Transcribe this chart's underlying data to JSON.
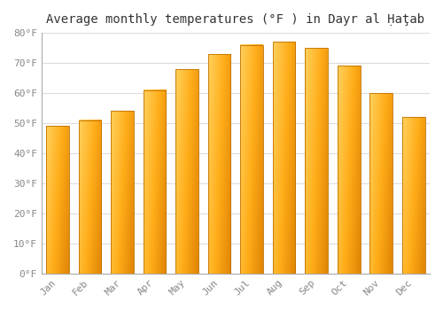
{
  "title": "Average monthly temperatures (°F ) in Dayr al Ḥaţab",
  "months": [
    "Jan",
    "Feb",
    "Mar",
    "Apr",
    "May",
    "Jun",
    "Jul",
    "Aug",
    "Sep",
    "Oct",
    "Nov",
    "Dec"
  ],
  "values": [
    49,
    51,
    54,
    61,
    68,
    73,
    76,
    77,
    75,
    69,
    60,
    52
  ],
  "bar_color_main": "#FFA500",
  "bar_color_light": "#FFD080",
  "bar_color_dark": "#E08000",
  "background_color": "#ffffff",
  "grid_color": "#dddddd",
  "ylim": [
    0,
    80
  ],
  "yticks": [
    0,
    10,
    20,
    30,
    40,
    50,
    60,
    70,
    80
  ],
  "title_fontsize": 10,
  "tick_fontsize": 8,
  "bar_width": 0.7,
  "tick_color": "#888888"
}
